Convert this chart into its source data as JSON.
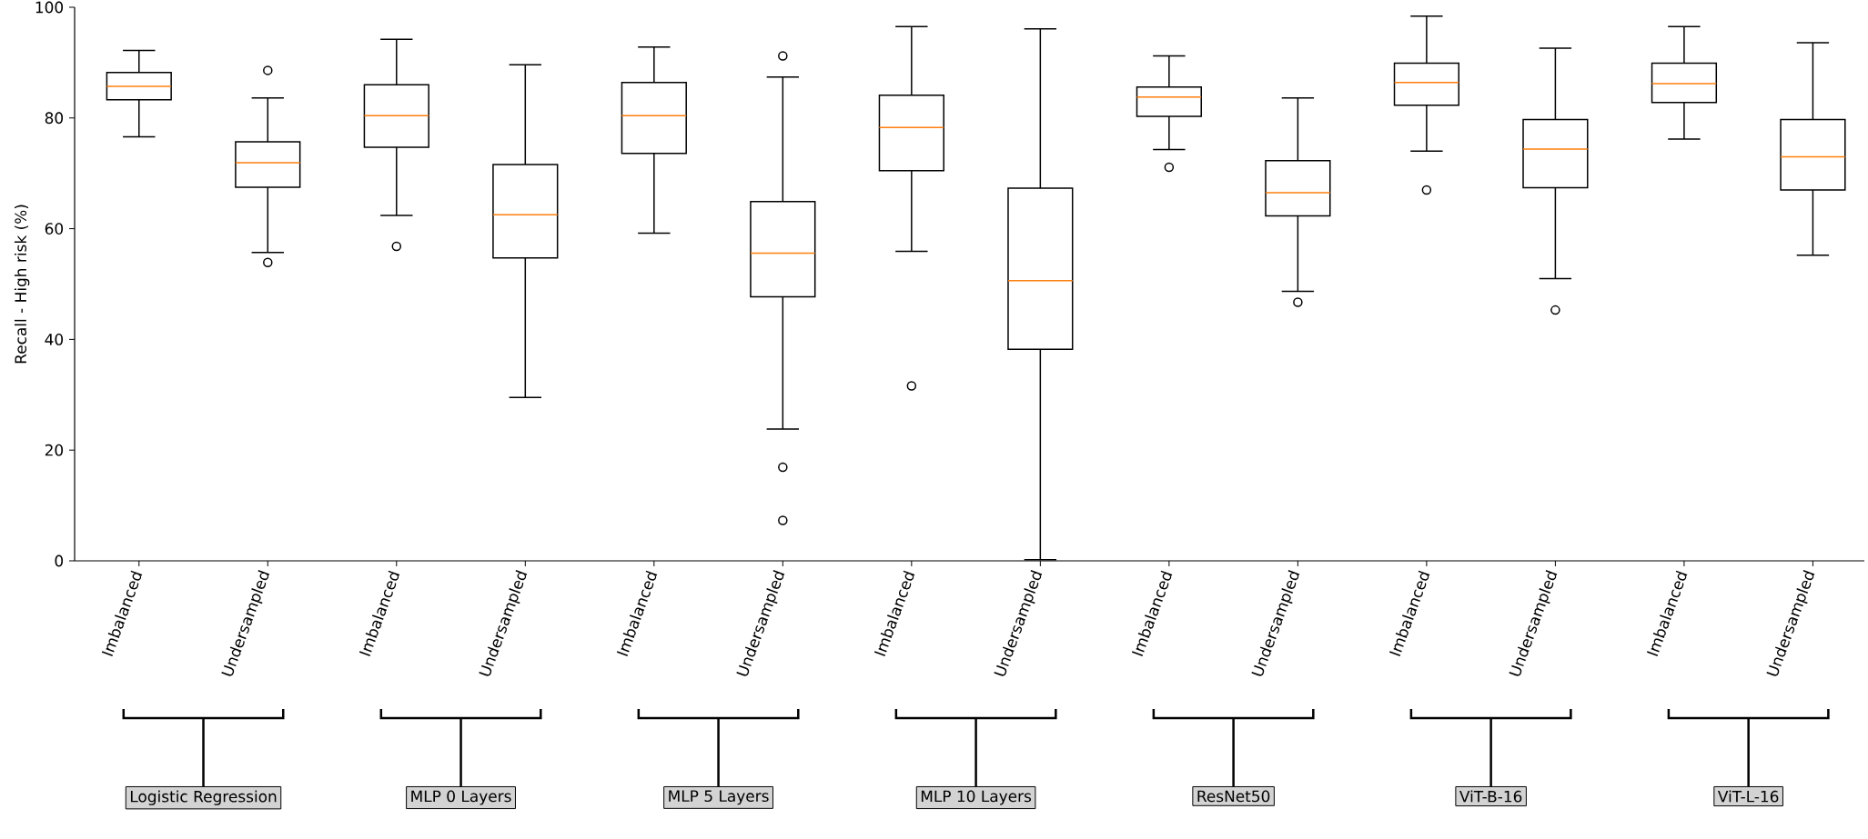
{
  "chart_data": {
    "type": "box",
    "ylabel": "Recall - High risk (%)",
    "categories": [
      "Imbalanced",
      "Undersampled",
      "Imbalanced",
      "Undersampled",
      "Imbalanced",
      "Undersampled",
      "Imbalanced",
      "Undersampled",
      "Imbalanced",
      "Undersampled",
      "Imbalanced",
      "Undersampled",
      "Imbalanced",
      "Undersampled"
    ],
    "ylim": [
      0,
      100
    ],
    "yticks": [
      0,
      20,
      40,
      60,
      80,
      100
    ],
    "grid": false,
    "series": [
      {
        "color": "#000000",
        "boxes": [
          {
            "low": 76.6,
            "q1": 83.3,
            "median": 85.7,
            "q3": 88.2,
            "high": 92.2
          },
          {
            "low": 55.7,
            "q1": 67.5,
            "median": 71.9,
            "q3": 75.7,
            "high": 83.6,
            "outliers": [
              88.6,
              53.9
            ]
          },
          {
            "low": 62.4,
            "q1": 74.7,
            "median": 80.4,
            "q3": 86.0,
            "high": 94.2,
            "outliers": [
              56.8
            ]
          },
          {
            "low": 29.5,
            "q1": 54.7,
            "median": 62.5,
            "q3": 71.6,
            "high": 89.6
          },
          {
            "low": 59.2,
            "q1": 73.6,
            "median": 80.4,
            "q3": 86.4,
            "high": 92.8
          },
          {
            "low": 23.8,
            "q1": 47.7,
            "median": 55.6,
            "q3": 64.9,
            "high": 87.4,
            "outliers": [
              91.2,
              16.9,
              7.3
            ]
          },
          {
            "low": 55.9,
            "q1": 70.5,
            "median": 78.3,
            "q3": 84.1,
            "high": 96.5,
            "outliers": [
              31.6
            ]
          },
          {
            "low": 0.2,
            "q1": 38.2,
            "median": 50.6,
            "q3": 67.3,
            "high": 96.1
          },
          {
            "low": 74.3,
            "q1": 80.3,
            "median": 83.8,
            "q3": 85.6,
            "high": 91.2,
            "outliers": [
              71.1
            ]
          },
          {
            "low": 48.7,
            "q1": 62.3,
            "median": 66.5,
            "q3": 72.3,
            "high": 83.6,
            "outliers": [
              46.7
            ]
          },
          {
            "low": 74.0,
            "q1": 82.3,
            "median": 86.4,
            "q3": 89.9,
            "high": 98.4,
            "outliers": [
              67.0
            ]
          },
          {
            "low": 51.0,
            "q1": 67.4,
            "median": 74.4,
            "q3": 79.7,
            "high": 92.6,
            "outliers": [
              45.3
            ]
          },
          {
            "low": 76.2,
            "q1": 82.8,
            "median": 86.2,
            "q3": 89.9,
            "high": 96.5
          },
          {
            "low": 55.2,
            "q1": 67.0,
            "median": 73.0,
            "q3": 79.7,
            "high": 93.6
          }
        ]
      }
    ],
    "annotations": [
      "Logistic Regression",
      "MLP 0 Layers",
      "MLP 5 Layers",
      "MLP 10 Layers",
      "ResNet50",
      "ViT-B-16",
      "ViT-L-16"
    ]
  }
}
